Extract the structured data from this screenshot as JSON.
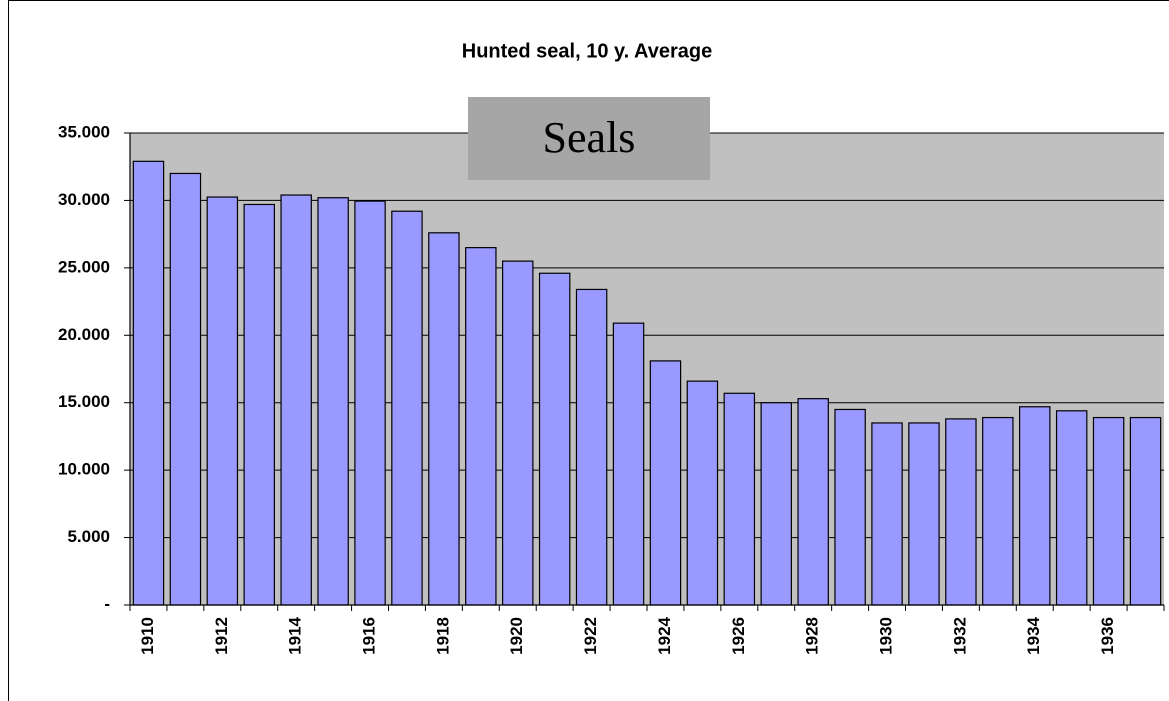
{
  "chart_data": {
    "type": "bar",
    "title": "Hunted seal, 10 y. Average",
    "annotation": "Seals",
    "categories": [
      "1910",
      null,
      "1912",
      null,
      "1914",
      null,
      "1916",
      null,
      "1918",
      null,
      "1920",
      null,
      "1922",
      null,
      "1924",
      null,
      "1926",
      null,
      "1928",
      null,
      "1930",
      null,
      "1932",
      null,
      "1934",
      null,
      "1936",
      null
    ],
    "values": [
      32900,
      32000,
      30250,
      29700,
      30400,
      30200,
      29950,
      29200,
      27600,
      26500,
      25500,
      24600,
      23400,
      20900,
      18100,
      16600,
      15700,
      15000,
      15300,
      14500,
      13500,
      13500,
      13800,
      13900,
      14700,
      14400,
      13900,
      13900
    ],
    "color": "#9999ff",
    "ylim": [
      0,
      35000
    ],
    "yticks": [
      {
        "value": 0,
        "label": "-"
      },
      {
        "value": 5000,
        "label": "5.000"
      },
      {
        "value": 10000,
        "label": "10.000"
      },
      {
        "value": 15000,
        "label": "15.000"
      },
      {
        "value": 20000,
        "label": "20.000"
      },
      {
        "value": 25000,
        "label": "25.000"
      },
      {
        "value": 30000,
        "label": "30.000"
      },
      {
        "value": 35000,
        "label": "35.000"
      }
    ],
    "grid": true
  }
}
